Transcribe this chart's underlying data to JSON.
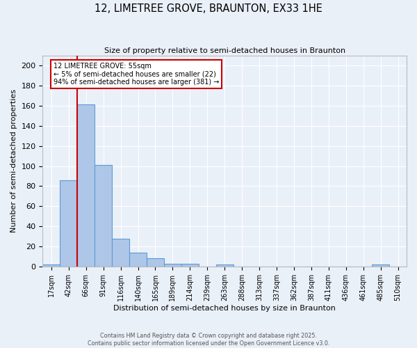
{
  "title": "12, LIMETREE GROVE, BRAUNTON, EX33 1HE",
  "subtitle": "Size of property relative to semi-detached houses in Braunton",
  "xlabel": "Distribution of semi-detached houses by size in Braunton",
  "ylabel": "Number of semi-detached properties",
  "bin_labels": [
    "17sqm",
    "42sqm",
    "66sqm",
    "91sqm",
    "116sqm",
    "140sqm",
    "165sqm",
    "189sqm",
    "214sqm",
    "239sqm",
    "263sqm",
    "288sqm",
    "313sqm",
    "337sqm",
    "362sqm",
    "387sqm",
    "411sqm",
    "436sqm",
    "461sqm",
    "485sqm",
    "510sqm"
  ],
  "bar_values": [
    2,
    86,
    161,
    101,
    28,
    14,
    8,
    3,
    3,
    0,
    2,
    0,
    0,
    0,
    0,
    0,
    0,
    0,
    0,
    2,
    0
  ],
  "bar_color": "#aec6e8",
  "bar_edge_color": "#5b9bd5",
  "background_color": "#eaf0f8",
  "grid_color": "#ffffff",
  "vline_x": 1.5,
  "vline_color": "#cc0000",
  "annotation_title": "12 LIMETREE GROVE: 55sqm",
  "annotation_line1": "← 5% of semi-detached houses are smaller (22)",
  "annotation_line2": "94% of semi-detached houses are larger (381) →",
  "annotation_box_color": "#cc0000",
  "footer_line1": "Contains HM Land Registry data © Crown copyright and database right 2025.",
  "footer_line2": "Contains public sector information licensed under the Open Government Licence v3.0.",
  "ylim": [
    0,
    210
  ],
  "yticks": [
    0,
    20,
    40,
    60,
    80,
    100,
    120,
    140,
    160,
    180,
    200
  ]
}
